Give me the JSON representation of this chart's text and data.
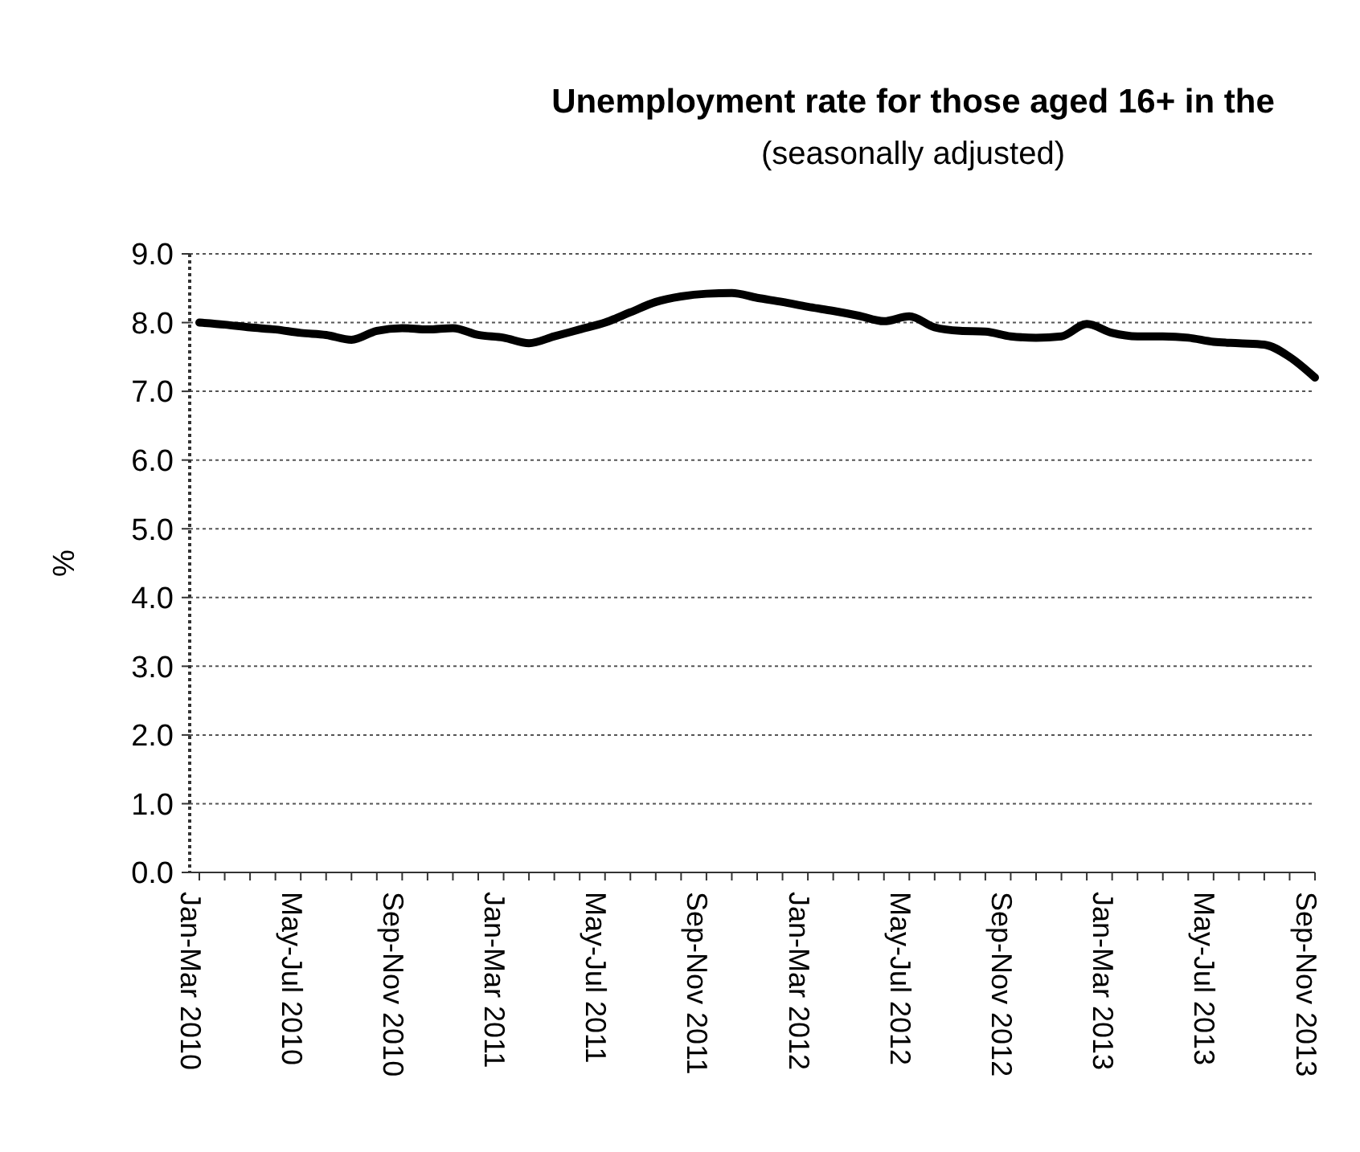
{
  "chart_data": {
    "type": "line",
    "title": "Unemployment rate for those aged 16+ in the",
    "subtitle": "(seasonally adjusted)",
    "ylabel": "%",
    "categories": [
      "Jan-Mar 2010",
      null,
      null,
      null,
      "May-Jul 2010",
      null,
      null,
      null,
      "Sep-Nov 2010",
      null,
      null,
      null,
      "Jan-Mar 2011",
      null,
      null,
      null,
      "May-Jul 2011",
      null,
      null,
      null,
      "Sep-Nov 2011",
      null,
      null,
      null,
      "Jan-Mar 2012",
      null,
      null,
      null,
      "May-Jul 2012",
      null,
      null,
      null,
      "Sep-Nov 2012",
      null,
      null,
      null,
      "Jan-Mar 2013",
      null,
      null,
      null,
      "May-Jul 2013",
      null,
      null,
      null,
      "Sep-Nov 2013"
    ],
    "series": [
      {
        "color": "#000000",
        "values": [
          8.0,
          7.97,
          7.93,
          7.9,
          7.85,
          7.82,
          7.75,
          7.88,
          7.92,
          7.9,
          7.92,
          7.82,
          7.78,
          7.7,
          7.8,
          7.9,
          8.0,
          8.15,
          8.3,
          8.38,
          8.42,
          8.43,
          8.36,
          8.3,
          8.23,
          8.17,
          8.1,
          8.02,
          8.09,
          7.93,
          7.88,
          7.87,
          7.8,
          7.78,
          7.8,
          7.98,
          7.85,
          7.8,
          7.8,
          7.78,
          7.72,
          7.7,
          7.68,
          7.5,
          7.2
        ]
      }
    ],
    "ylim": [
      0,
      9
    ],
    "yticks": [
      {
        "value": 0,
        "label": "0.0"
      },
      {
        "value": 1,
        "label": "1.0"
      },
      {
        "value": 2,
        "label": "2.0"
      },
      {
        "value": 3,
        "label": "3.0"
      },
      {
        "value": 4,
        "label": "4.0"
      },
      {
        "value": 5,
        "label": "5.0"
      },
      {
        "value": 6,
        "label": "6.0"
      },
      {
        "value": 7,
        "label": "7.0"
      },
      {
        "value": 8,
        "label": "8.0"
      },
      {
        "value": 9,
        "label": "9.0"
      }
    ],
    "grid": "y",
    "marker": "none",
    "line_style": "solid"
  }
}
